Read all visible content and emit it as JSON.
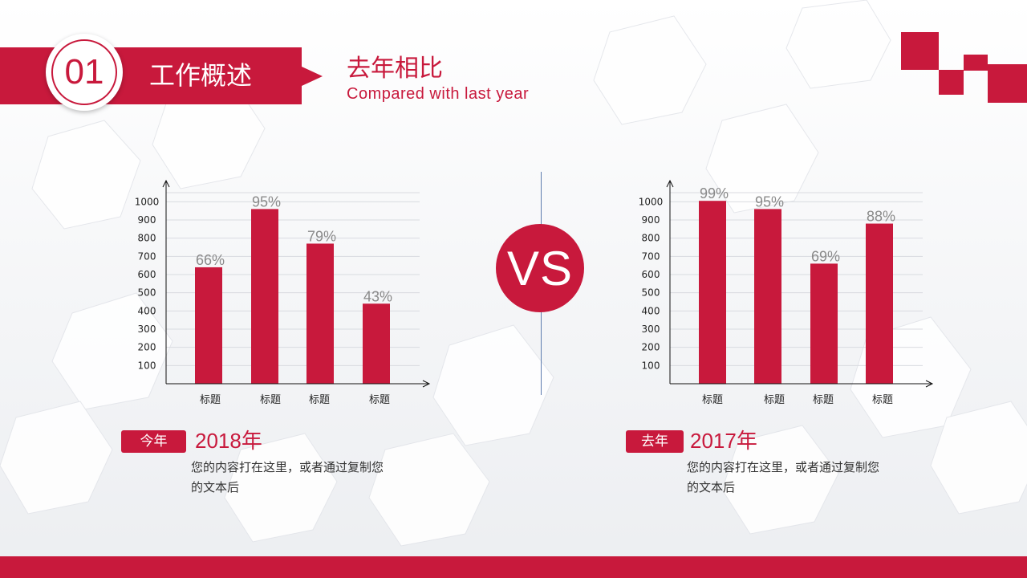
{
  "header": {
    "section_number": "01",
    "section_title": "工作概述",
    "title_cn": "去年相比",
    "title_en": "Compared with last year"
  },
  "vs": {
    "label": "VS"
  },
  "colors": {
    "accent": "#c8193c",
    "divider": "#5d7cae",
    "label_gray": "#8a8a8a"
  },
  "chart_data": [
    {
      "type": "bar",
      "categories": [
        "标题",
        "标题",
        "标题",
        "标题"
      ],
      "values": [
        640,
        960,
        770,
        440
      ],
      "data_labels": [
        "66%",
        "95%",
        "79%",
        "43%"
      ],
      "y_ticks": [
        100,
        200,
        300,
        400,
        500,
        600,
        700,
        800,
        900,
        1000
      ],
      "ylim": [
        0,
        1050
      ],
      "grid": true,
      "color": "#c8193c"
    },
    {
      "type": "bar",
      "categories": [
        "标题",
        "标题",
        "标题",
        "标题"
      ],
      "values": [
        1005,
        960,
        660,
        880
      ],
      "data_labels": [
        "99%",
        "95%",
        "69%",
        "88%"
      ],
      "y_ticks": [
        100,
        200,
        300,
        400,
        500,
        600,
        700,
        800,
        900,
        1000
      ],
      "ylim": [
        0,
        1050
      ],
      "grid": true,
      "color": "#c8193c"
    }
  ],
  "panels": [
    {
      "tag": "今年",
      "year": "2018年",
      "desc": "您的内容打在这里，或者通过复制您的文本后"
    },
    {
      "tag": "去年",
      "year": "2017年",
      "desc": "您的内容打在这里，或者通过复制您的文本后"
    }
  ]
}
